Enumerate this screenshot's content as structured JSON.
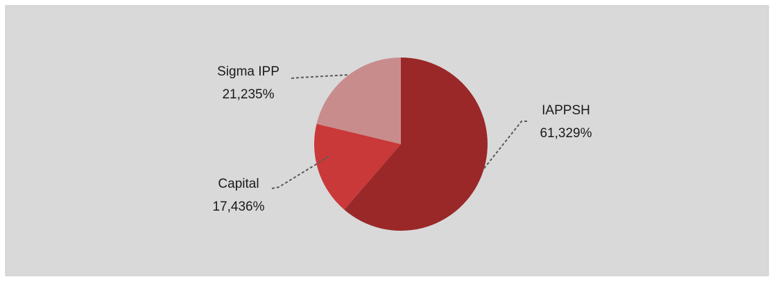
{
  "chart_data": {
    "type": "pie",
    "categories": [
      "IAPPSH",
      "Capital",
      "Sigma IPP"
    ],
    "values": [
      61.329,
      17.436,
      21.235
    ],
    "value_labels": [
      "61,329%",
      "17,436%",
      "21,235%"
    ],
    "colors": [
      "#9a2828",
      "#c93939",
      "#c98c8c"
    ]
  }
}
